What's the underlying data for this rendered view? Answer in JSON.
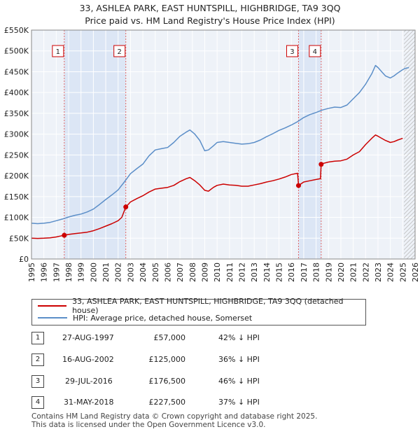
{
  "chart_data": {
    "type": "line",
    "title": "33, ASHLEA PARK, EAST HUNTSPILL, HIGHBRIDGE, TA9 3QQ",
    "subtitle": "Price paid vs. HM Land Registry's House Price Index (HPI)",
    "xlabel": "",
    "ylabel": "",
    "xlim": [
      1995,
      2026
    ],
    "ylim": [
      0,
      550000
    ],
    "grid": true,
    "x_ticks": [
      "1995",
      "1996",
      "1997",
      "1998",
      "1999",
      "2000",
      "2001",
      "2002",
      "2003",
      "2004",
      "2005",
      "2006",
      "2007",
      "2008",
      "2009",
      "2010",
      "2011",
      "2012",
      "2013",
      "2014",
      "2015",
      "2016",
      "2017",
      "2018",
      "2019",
      "2020",
      "2021",
      "2022",
      "2023",
      "2024",
      "2025",
      "2026"
    ],
    "y_ticks": [
      {
        "value": 0,
        "label": "£0"
      },
      {
        "value": 50000,
        "label": "£50K"
      },
      {
        "value": 100000,
        "label": "£100K"
      },
      {
        "value": 150000,
        "label": "£150K"
      },
      {
        "value": 200000,
        "label": "£200K"
      },
      {
        "value": 250000,
        "label": "£250K"
      },
      {
        "value": 300000,
        "label": "£300K"
      },
      {
        "value": 350000,
        "label": "£350K"
      },
      {
        "value": 400000,
        "label": "£400K"
      },
      {
        "value": 450000,
        "label": "£450K"
      },
      {
        "value": 500000,
        "label": "£500K"
      },
      {
        "value": 550000,
        "label": "£550K"
      }
    ],
    "shaded_ranges": [
      [
        1997.65,
        2002.62
      ],
      [
        2016.58,
        2018.41
      ]
    ],
    "forecast_start": 2025.1,
    "series": [
      {
        "name": "33, ASHLEA PARK, EAST HUNTSPILL, HIGHBRIDGE, TA9 3QQ (detached house)",
        "color": "#cc0000",
        "x": [
          1995.0,
          1995.5,
          1996.0,
          1996.5,
          1997.0,
          1997.3,
          1997.65,
          1998.0,
          1998.5,
          1999.0,
          1999.5,
          2000.0,
          2000.5,
          2001.0,
          2001.5,
          2002.0,
          2002.3,
          2002.62,
          2003.0,
          2003.5,
          2004.0,
          2004.5,
          2005.0,
          2005.5,
          2006.0,
          2006.5,
          2007.0,
          2007.5,
          2007.8,
          2008.2,
          2008.6,
          2009.0,
          2009.3,
          2009.7,
          2010.0,
          2010.5,
          2011.0,
          2011.5,
          2012.0,
          2012.5,
          2013.0,
          2013.5,
          2014.0,
          2014.5,
          2015.0,
          2015.5,
          2016.0,
          2016.5,
          2016.58,
          2016.8,
          2017.0,
          2017.5,
          2018.0,
          2018.35,
          2018.41,
          2018.6,
          2019.0,
          2019.5,
          2020.0,
          2020.5,
          2021.0,
          2021.5,
          2022.0,
          2022.5,
          2022.8,
          2023.0,
          2023.3,
          2023.6,
          2024.0,
          2024.3,
          2024.6,
          2025.0
        ],
        "values": [
          50000,
          49500,
          50000,
          51000,
          53000,
          55000,
          57000,
          59000,
          61000,
          62500,
          64500,
          68000,
          73000,
          79000,
          85000,
          92000,
          100000,
          125000,
          137000,
          145000,
          152000,
          161000,
          168000,
          170000,
          172000,
          177000,
          186000,
          193000,
          196000,
          188000,
          178000,
          165000,
          163000,
          172000,
          177000,
          180000,
          178000,
          177000,
          175000,
          175000,
          178000,
          181000,
          185000,
          188000,
          192000,
          197000,
          203000,
          206000,
          176500,
          181000,
          185000,
          188000,
          191000,
          193000,
          227500,
          230000,
          233000,
          235000,
          236000,
          240000,
          250000,
          258000,
          275000,
          290000,
          298000,
          295000,
          290000,
          285000,
          280000,
          282000,
          286000,
          290000
        ]
      },
      {
        "name": "HPI: Average price, detached house, Somerset",
        "color": "#5b8ec8",
        "x": [
          1995.0,
          1995.5,
          1996.0,
          1996.5,
          1997.0,
          1997.5,
          1998.0,
          1998.5,
          1999.0,
          1999.5,
          2000.0,
          2000.5,
          2001.0,
          2001.5,
          2002.0,
          2002.5,
          2003.0,
          2003.5,
          2004.0,
          2004.5,
          2005.0,
          2005.5,
          2006.0,
          2006.5,
          2007.0,
          2007.5,
          2007.8,
          2008.2,
          2008.6,
          2009.0,
          2009.3,
          2009.7,
          2010.0,
          2010.5,
          2011.0,
          2011.5,
          2012.0,
          2012.5,
          2013.0,
          2013.5,
          2014.0,
          2014.5,
          2015.0,
          2015.5,
          2016.0,
          2016.5,
          2017.0,
          2017.5,
          2018.0,
          2018.5,
          2019.0,
          2019.5,
          2020.0,
          2020.5,
          2021.0,
          2021.5,
          2022.0,
          2022.5,
          2022.8,
          2023.0,
          2023.3,
          2023.6,
          2024.0,
          2024.3,
          2024.6,
          2025.0,
          2025.2,
          2025.5
        ],
        "values": [
          86000,
          85000,
          86000,
          88000,
          92000,
          96000,
          101000,
          105000,
          108000,
          113000,
          120000,
          131000,
          143000,
          154000,
          166000,
          185000,
          205000,
          217000,
          228000,
          248000,
          262000,
          265000,
          268000,
          280000,
          295000,
          305000,
          310000,
          300000,
          285000,
          260000,
          262000,
          272000,
          280000,
          282000,
          280000,
          278000,
          276000,
          277000,
          280000,
          286000,
          294000,
          301000,
          309000,
          315000,
          322000,
          330000,
          340000,
          347000,
          352000,
          358000,
          362000,
          365000,
          364000,
          370000,
          385000,
          400000,
          420000,
          445000,
          465000,
          460000,
          450000,
          440000,
          435000,
          440000,
          447000,
          455000,
          458000,
          460000
        ]
      }
    ],
    "markers": [
      {
        "label": "1",
        "x": 1997.65,
        "value": 57000
      },
      {
        "label": "2",
        "x": 2002.62,
        "value": 125000
      },
      {
        "label": "3",
        "x": 2016.58,
        "value": 176500
      },
      {
        "label": "4",
        "x": 2018.41,
        "value": 227500
      }
    ]
  },
  "legend": {
    "items": [
      {
        "label": "33, ASHLEA PARK, EAST HUNTSPILL, HIGHBRIDGE, TA9 3QQ (detached house)",
        "color": "#cc0000"
      },
      {
        "label": "HPI: Average price, detached house, Somerset",
        "color": "#5b8ec8"
      }
    ]
  },
  "transactions": [
    {
      "num": "1",
      "date": "27-AUG-1997",
      "price": "£57,000",
      "hpi": "42% ↓ HPI"
    },
    {
      "num": "2",
      "date": "16-AUG-2002",
      "price": "£125,000",
      "hpi": "36% ↓ HPI"
    },
    {
      "num": "3",
      "date": "29-JUL-2016",
      "price": "£176,500",
      "hpi": "46% ↓ HPI"
    },
    {
      "num": "4",
      "date": "31-MAY-2018",
      "price": "£227,500",
      "hpi": "37% ↓ HPI"
    }
  ],
  "footer": {
    "line1": "Contains HM Land Registry data © Crown copyright and database right 2025.",
    "line2": "This data is licensed under the Open Government Licence v3.0."
  }
}
